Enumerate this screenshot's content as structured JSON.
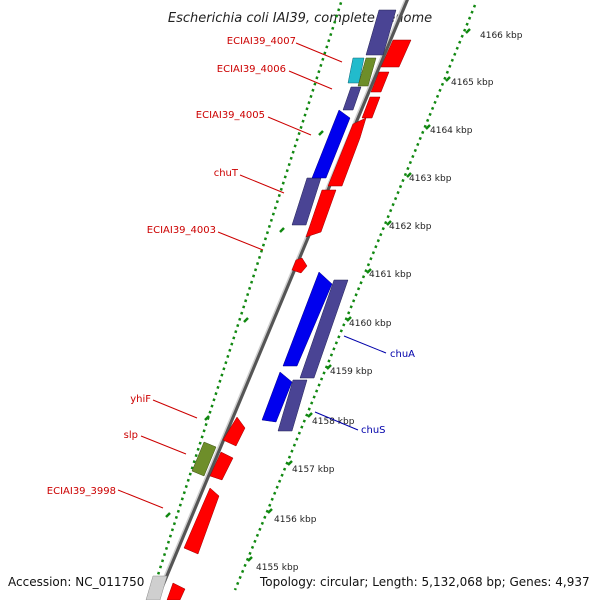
{
  "title": "Escherichia coli IAI39, complete genome",
  "footer": {
    "accession": "Accession: NC_011750",
    "topology": "Topology: circular; Length: 5,132,068 bp; Genes: 4,937"
  },
  "ticks": [
    "4166 kbp",
    "4165 kbp",
    "4164 kbp",
    "4163 kbp",
    "4162 kbp",
    "4161 kbp",
    "4160 kbp",
    "4159 kbp",
    "4158 kbp",
    "4157 kbp",
    "4156 kbp",
    "4155 kbp"
  ],
  "gene_labels": [
    {
      "text": "ECIAI39_4007",
      "color": "#cc0000"
    },
    {
      "text": "ECIAI39_4006",
      "color": "#cc0000"
    },
    {
      "text": "ECIAI39_4005",
      "color": "#cc0000"
    },
    {
      "text": "chuT",
      "color": "#cc0000"
    },
    {
      "text": "ECIAI39_4003",
      "color": "#cc0000"
    },
    {
      "text": "yhiF",
      "color": "#cc0000"
    },
    {
      "text": "slp",
      "color": "#cc0000"
    },
    {
      "text": "ECIAI39_3998",
      "color": "#cc0000"
    },
    {
      "text": "chuA",
      "color": "#0000aa"
    },
    {
      "text": "chuS",
      "color": "#0000aa"
    }
  ],
  "colors": {
    "red": "#ff0000",
    "blue": "#0000ee",
    "purple": "#4a4494",
    "olive": "#6e8e2a",
    "cyan": "#22bbcc",
    "gray": "#cfcfcf",
    "backbone": "#888888",
    "dots": "#118811"
  }
}
